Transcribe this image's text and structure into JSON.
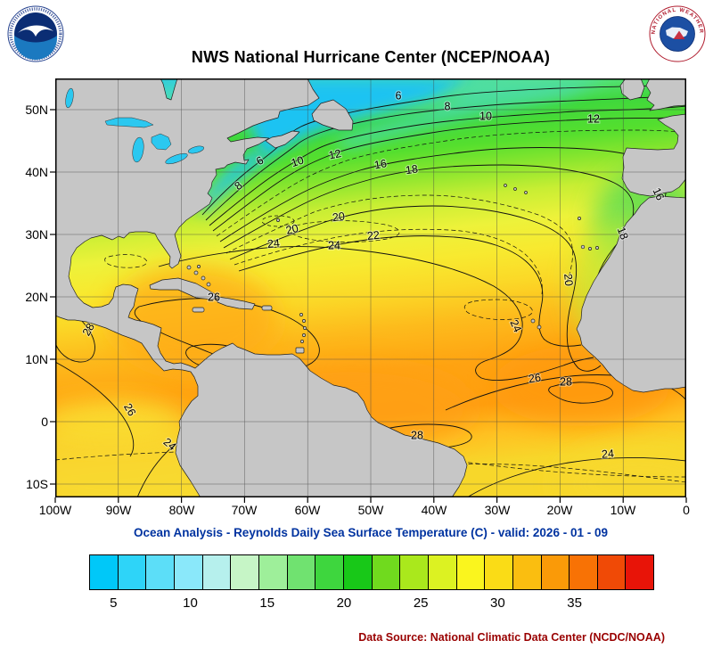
{
  "header": {
    "title": "NWS National Hurricane Center (NCEP/NOAA)",
    "nws_ring_text": "NATIONAL WEATHER SERVICE"
  },
  "map": {
    "lat_labels": [
      "50N",
      "40N",
      "30N",
      "20N",
      "10N",
      "0",
      "10S"
    ],
    "lon_labels": [
      "100W",
      "90W",
      "80W",
      "70W",
      "60W",
      "50W",
      "40W",
      "30W",
      "20W",
      "10W",
      "0"
    ],
    "contour_labels": [
      "6",
      "8",
      "10",
      "12",
      "18",
      "16",
      "6",
      "8",
      "10",
      "12",
      "16",
      "18",
      "20",
      "20",
      "20",
      "22",
      "24",
      "24",
      "24",
      "26",
      "26",
      "26",
      "28",
      "28",
      "28",
      "24",
      "24"
    ],
    "units": "C"
  },
  "caption": "Ocean Analysis - Reynolds Daily Sea Surface Temperature (C) - valid: 2026 - 01 - 09",
  "colorbar": {
    "tick_labels": [
      "5",
      "10",
      "15",
      "20",
      "25",
      "30",
      "35"
    ],
    "colors": [
      "#00C8F8",
      "#2ED4F8",
      "#5CDEF8",
      "#8AE8FA",
      "#B6F0ED",
      "#C6F5C6",
      "#9EEF9A",
      "#70E270",
      "#3ED63E",
      "#18C818",
      "#70DA1E",
      "#AAE81C",
      "#DCF222",
      "#FAF51E",
      "#FADC16",
      "#FABE10",
      "#FA9A08",
      "#F87205",
      "#F04A06",
      "#E81408"
    ]
  },
  "footer": {
    "data_source": "Data Source: National Climatic Data Center (NCDC/NOAA)"
  },
  "chart_data": {
    "type": "heatmap",
    "title": "NWS National Hurricane Center (NCEP/NOAA)",
    "subtitle": "Ocean Analysis - Reynolds Daily Sea Surface Temperature (C) - valid: 2026 - 01 - 09",
    "x_ticks": [
      "100W",
      "90W",
      "80W",
      "70W",
      "60W",
      "50W",
      "40W",
      "30W",
      "20W",
      "10W",
      "0"
    ],
    "y_ticks": [
      "50N",
      "40N",
      "30N",
      "20N",
      "10N",
      "0",
      "10S"
    ],
    "colorbar_ticks": [
      5,
      10,
      15,
      20,
      25,
      30,
      35
    ],
    "colorbar_units": "C",
    "labeled_contour_levels_c": [
      6,
      8,
      10,
      12,
      16,
      18,
      20,
      22,
      24,
      26,
      28
    ],
    "pattern": "SST increases from ~6C in the NW Atlantic to ~28C in the tropics; isotherms crowd along the Gulf Stream front near 40N and bend south along the NW African coast"
  }
}
